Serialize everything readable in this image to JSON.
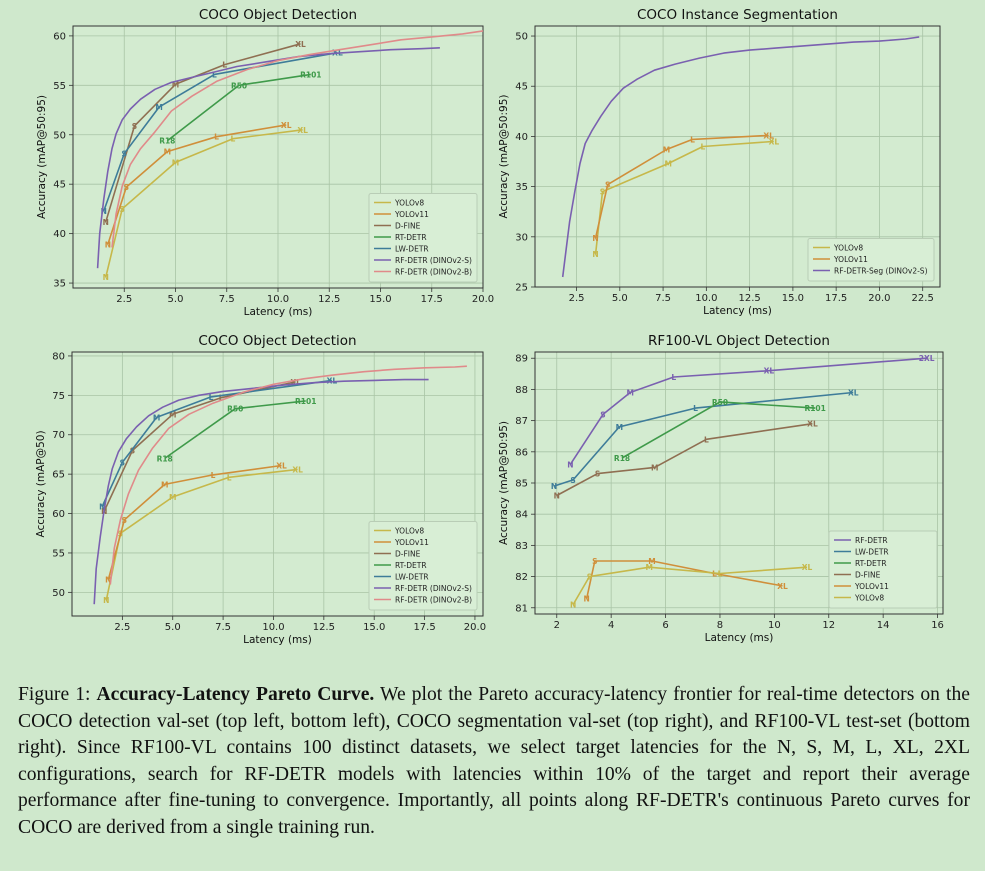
{
  "caption": {
    "prefix": "Figure 1: ",
    "bold": "Accuracy-Latency Pareto Curve.",
    "text": " We plot the Pareto accuracy-latency frontier for real-time detectors on the COCO detection val-set (top left, bottom left), COCO segmentation val-set (top right), and RF100-VL test-set (bottom right). Since RF100-VL contains 100 distinct datasets, we select target latencies for the N, S, M, L, XL, 2XL configurations, search for RF-DETR models with latencies within 10% of the target and report their average performance after fine-tuning to convergence. Importantly, all points along RF-DETR's continuous Pareto curves for COCO are derived from a single training run."
  },
  "chart_data": [
    {
      "type": "line",
      "title": "COCO Object Detection",
      "xlabel": "Latency (ms)",
      "ylabel": "Accuracy (mAP@50:95)",
      "xlim": [
        0,
        20
      ],
      "ylim": [
        34.5,
        61
      ],
      "xticks": [
        2.5,
        5.0,
        7.5,
        10.0,
        12.5,
        15.0,
        17.5,
        20.0
      ],
      "xtick_labels": [
        "2.5",
        "5.0",
        "7.5",
        "10.0",
        "12.5",
        "15.0",
        "17.5",
        "20.0"
      ],
      "yticks": [
        35,
        40,
        45,
        50,
        55,
        60
      ],
      "ytick_labels": [
        "35",
        "40",
        "45",
        "50",
        "55",
        "60"
      ],
      "legend_position": "lower-right",
      "series": [
        {
          "name": "YOLOv8",
          "color": "#c6b84a",
          "x": [
            1.6,
            2.4,
            5.0,
            7.8,
            11.2
          ],
          "y": [
            35.6,
            42.5,
            47.2,
            49.6,
            50.5
          ],
          "labels": [
            "N",
            "S",
            "M",
            "L",
            "XL"
          ]
        },
        {
          "name": "YOLOv11",
          "color": "#d08f3a",
          "x": [
            1.7,
            2.6,
            4.6,
            7.0,
            10.4
          ],
          "y": [
            38.9,
            44.7,
            48.3,
            49.8,
            51.0
          ],
          "labels": [
            "N",
            "S",
            "M",
            "L",
            "XL"
          ]
        },
        {
          "name": "D-FINE",
          "color": "#8f6f52",
          "x": [
            1.6,
            3.0,
            5.0,
            7.4,
            11.1
          ],
          "y": [
            41.2,
            50.9,
            55.1,
            57.1,
            59.2
          ],
          "labels": [
            "N",
            "S",
            "M",
            "L",
            "XL"
          ]
        },
        {
          "name": "RT-DETR",
          "color": "#3f9a4a",
          "x": [
            4.6,
            8.1,
            11.6
          ],
          "y": [
            49.4,
            55.0,
            56.1
          ],
          "labels": [
            "R18",
            "R50",
            "R101"
          ]
        },
        {
          "name": "LW-DETR",
          "color": "#3e7c99",
          "x": [
            1.5,
            2.5,
            4.2,
            6.9,
            12.9
          ],
          "y": [
            42.3,
            48.1,
            52.8,
            56.1,
            58.3
          ],
          "labels": [
            "N",
            "S",
            "M",
            "L",
            "XL"
          ]
        },
        {
          "name": "RF-DETR (DINOv2-S)",
          "color": "#7a60b0",
          "x": [
            1.2,
            1.3,
            1.5,
            1.7,
            1.9,
            2.1,
            2.4,
            2.8,
            3.3,
            4.0,
            4.8,
            5.8,
            6.8,
            8.0,
            9.5,
            11.0,
            12.5,
            14.0,
            15.5,
            17.0,
            17.9
          ],
          "y": [
            36.5,
            40.0,
            43.5,
            46.3,
            48.6,
            50.1,
            51.5,
            52.6,
            53.6,
            54.6,
            55.3,
            55.8,
            56.3,
            56.9,
            57.4,
            57.9,
            58.2,
            58.4,
            58.6,
            58.7,
            58.8
          ]
        },
        {
          "name": "RF-DETR (DINOv2-B)",
          "color": "#e08a8a",
          "x": [
            1.9,
            2.1,
            2.4,
            2.8,
            3.3,
            4.0,
            4.8,
            5.8,
            7.0,
            8.5,
            10.0,
            11.5,
            13.0,
            14.5,
            16.0,
            17.5,
            19.0,
            20.0
          ],
          "y": [
            38.6,
            42.0,
            44.8,
            47.0,
            48.6,
            50.3,
            52.4,
            53.9,
            55.4,
            56.6,
            57.5,
            58.1,
            58.6,
            59.1,
            59.6,
            59.9,
            60.2,
            60.5
          ]
        }
      ]
    },
    {
      "type": "line",
      "title": "COCO Instance Segmentation",
      "xlabel": "Latency (ms)",
      "ylabel": "Accuracy (mAP@50:95)",
      "xlim": [
        0.1,
        23.5
      ],
      "ylim": [
        25,
        51
      ],
      "xticks": [
        2.5,
        5.0,
        7.5,
        10.0,
        12.5,
        15.0,
        17.5,
        20.0,
        22.5
      ],
      "xtick_labels": [
        "2.5",
        "5.0",
        "7.5",
        "10.0",
        "12.5",
        "15.0",
        "17.5",
        "20.0",
        "22.5"
      ],
      "yticks": [
        25,
        30,
        35,
        40,
        45,
        50
      ],
      "ytick_labels": [
        "25",
        "30",
        "35",
        "40",
        "45",
        "50"
      ],
      "legend_position": "lower-right",
      "series": [
        {
          "name": "YOLOv8",
          "color": "#c6b84a",
          "x": [
            3.6,
            4.0,
            7.8,
            9.8,
            13.9
          ],
          "y": [
            28.3,
            34.5,
            37.3,
            39.0,
            39.5
          ],
          "labels": [
            "N",
            "S",
            "M",
            "L",
            "XL"
          ]
        },
        {
          "name": "YOLOv11",
          "color": "#d08f3a",
          "x": [
            3.6,
            4.3,
            7.7,
            9.2,
            13.6
          ],
          "y": [
            29.9,
            35.2,
            38.7,
            39.7,
            40.1
          ],
          "labels": [
            "N",
            "S",
            "M",
            "L",
            "XL"
          ]
        },
        {
          "name": "RF-DETR-Seg (DINOv2-S)",
          "color": "#7a60b0",
          "x": [
            1.7,
            1.9,
            2.1,
            2.4,
            2.7,
            3.0,
            3.4,
            3.9,
            4.5,
            5.2,
            6.0,
            7.0,
            8.2,
            9.6,
            11.0,
            12.5,
            14.0,
            15.5,
            17.0,
            18.5,
            20.0,
            21.5,
            22.3
          ],
          "y": [
            26.0,
            28.8,
            31.5,
            34.5,
            37.3,
            39.3,
            40.6,
            42.0,
            43.5,
            44.8,
            45.7,
            46.6,
            47.2,
            47.8,
            48.3,
            48.6,
            48.8,
            49.0,
            49.2,
            49.4,
            49.5,
            49.7,
            49.9
          ]
        }
      ]
    },
    {
      "type": "line",
      "title": "COCO Object Detection",
      "xlabel": "Latency (ms)",
      "ylabel": "Accuracy (mAP@50)",
      "xlim": [
        0,
        20.4
      ],
      "ylim": [
        47,
        80.5
      ],
      "xticks": [
        2.5,
        5.0,
        7.5,
        10.0,
        12.5,
        15.0,
        17.5,
        20.0
      ],
      "xtick_labels": [
        "2.5",
        "5.0",
        "7.5",
        "10.0",
        "12.5",
        "15.0",
        "17.5",
        "20.0"
      ],
      "yticks": [
        50,
        55,
        60,
        65,
        70,
        75,
        80
      ],
      "ytick_labels": [
        "50",
        "55",
        "60",
        "65",
        "70",
        "75",
        "80"
      ],
      "legend_position": "lower-right",
      "series": [
        {
          "name": "YOLOv8",
          "color": "#c6b84a",
          "x": [
            1.7,
            2.4,
            5.0,
            7.8,
            11.2
          ],
          "y": [
            49.0,
            57.5,
            62.1,
            64.6,
            65.6
          ],
          "labels": [
            "N",
            "S",
            "M",
            "L",
            "XL"
          ]
        },
        {
          "name": "YOLOv11",
          "color": "#d08f3a",
          "x": [
            1.8,
            2.6,
            4.6,
            7.0,
            10.4
          ],
          "y": [
            51.6,
            59.2,
            63.7,
            64.9,
            66.1
          ],
          "labels": [
            "N",
            "S",
            "M",
            "L",
            "XL"
          ]
        },
        {
          "name": "D-FINE",
          "color": "#8f6f52",
          "x": [
            1.6,
            3.0,
            5.0,
            7.4,
            11.1
          ],
          "y": [
            60.3,
            68.0,
            72.6,
            74.7,
            76.7
          ],
          "labels": [
            "N",
            "S",
            "M",
            "L",
            "XL"
          ]
        },
        {
          "name": "RT-DETR",
          "color": "#3f9a4a",
          "x": [
            4.6,
            8.1,
            11.6
          ],
          "y": [
            67.0,
            73.3,
            74.3
          ],
          "labels": [
            "R18",
            "R50",
            "R101"
          ]
        },
        {
          "name": "LW-DETR",
          "color": "#3e7c99",
          "x": [
            1.5,
            2.5,
            4.2,
            6.9,
            12.9
          ],
          "y": [
            60.9,
            66.5,
            72.2,
            74.8,
            76.9
          ],
          "labels": [
            "N",
            "S",
            "M",
            "L",
            "XL"
          ]
        },
        {
          "name": "RF-DETR (DINOv2-S)",
          "color": "#7a60b0",
          "x": [
            1.1,
            1.2,
            1.4,
            1.6,
            1.8,
            2.0,
            2.3,
            2.7,
            3.2,
            3.8,
            4.5,
            5.3,
            6.3,
            7.5,
            9.0,
            10.5,
            12.0,
            13.5,
            15.0,
            16.5,
            17.7
          ],
          "y": [
            48.5,
            53.0,
            57.0,
            60.5,
            63.5,
            65.7,
            67.8,
            69.5,
            71.0,
            72.4,
            73.5,
            74.4,
            75.0,
            75.5,
            75.9,
            76.3,
            76.6,
            76.8,
            76.9,
            77.0,
            77.0
          ]
        },
        {
          "name": "RF-DETR (DINOv2-B)",
          "color": "#e08a8a",
          "x": [
            1.9,
            2.1,
            2.4,
            2.8,
            3.3,
            4.0,
            4.8,
            5.8,
            7.0,
            8.5,
            10.0,
            11.5,
            13.0,
            14.5,
            16.0,
            17.5,
            19.0,
            19.6
          ],
          "y": [
            51.0,
            55.6,
            59.2,
            62.5,
            65.5,
            68.3,
            70.8,
            72.6,
            74.0,
            75.4,
            76.4,
            77.1,
            77.6,
            78.0,
            78.3,
            78.5,
            78.6,
            78.7
          ]
        }
      ]
    },
    {
      "type": "line",
      "title": "RF100-VL Object Detection",
      "xlabel": "Latency (ms)",
      "ylabel": "Accuracy (mAP@50:95)",
      "xlim": [
        1.2,
        16.2
      ],
      "ylim": [
        80.8,
        89.2
      ],
      "xticks": [
        2,
        4,
        6,
        8,
        10,
        12,
        14,
        16
      ],
      "xtick_labels": [
        "2",
        "4",
        "6",
        "8",
        "10",
        "12",
        "14",
        "16"
      ],
      "yticks": [
        81,
        82,
        83,
        84,
        85,
        86,
        87,
        88,
        89
      ],
      "ytick_labels": [
        "81",
        "82",
        "83",
        "84",
        "85",
        "86",
        "87",
        "88",
        "89"
      ],
      "legend_position": "lower-right",
      "series": [
        {
          "name": "RF-DETR",
          "color": "#7a60b0",
          "x": [
            2.5,
            3.7,
            4.7,
            6.3,
            9.8,
            15.6
          ],
          "y": [
            85.6,
            87.2,
            87.9,
            88.4,
            88.6,
            89.0
          ],
          "labels": [
            "N",
            "S",
            "M",
            "L",
            "XL",
            "2XL"
          ]
        },
        {
          "name": "LW-DETR",
          "color": "#3e7c99",
          "x": [
            1.9,
            2.6,
            4.3,
            7.1,
            12.9
          ],
          "y": [
            84.9,
            85.1,
            86.8,
            87.4,
            87.9
          ],
          "labels": [
            "N",
            "S",
            "M",
            "L",
            "XL"
          ]
        },
        {
          "name": "RT-DETR",
          "color": "#3f9a4a",
          "x": [
            4.4,
            8.0,
            11.5
          ],
          "y": [
            85.8,
            87.6,
            87.4
          ],
          "labels": [
            "R18",
            "R50",
            "R101"
          ]
        },
        {
          "name": "D-FINE",
          "color": "#8f6f52",
          "x": [
            2.0,
            3.5,
            5.6,
            7.5,
            11.4
          ],
          "y": [
            84.6,
            85.3,
            85.5,
            86.4,
            86.9
          ],
          "labels": [
            "N",
            "S",
            "M",
            "L",
            "XL"
          ]
        },
        {
          "name": "YOLOv11",
          "color": "#d08f3a",
          "x": [
            3.1,
            3.4,
            5.5,
            7.8,
            10.3
          ],
          "y": [
            81.3,
            82.5,
            82.5,
            82.1,
            81.7
          ],
          "labels": [
            "N",
            "S",
            "M",
            "L",
            "XL"
          ]
        },
        {
          "name": "YOLOv8",
          "color": "#c6b84a",
          "x": [
            2.6,
            3.2,
            5.4,
            8.0,
            11.2
          ],
          "y": [
            81.1,
            82.0,
            82.3,
            82.1,
            82.3
          ],
          "labels": [
            "N",
            "S",
            "M",
            "L",
            "XL"
          ]
        }
      ]
    }
  ]
}
